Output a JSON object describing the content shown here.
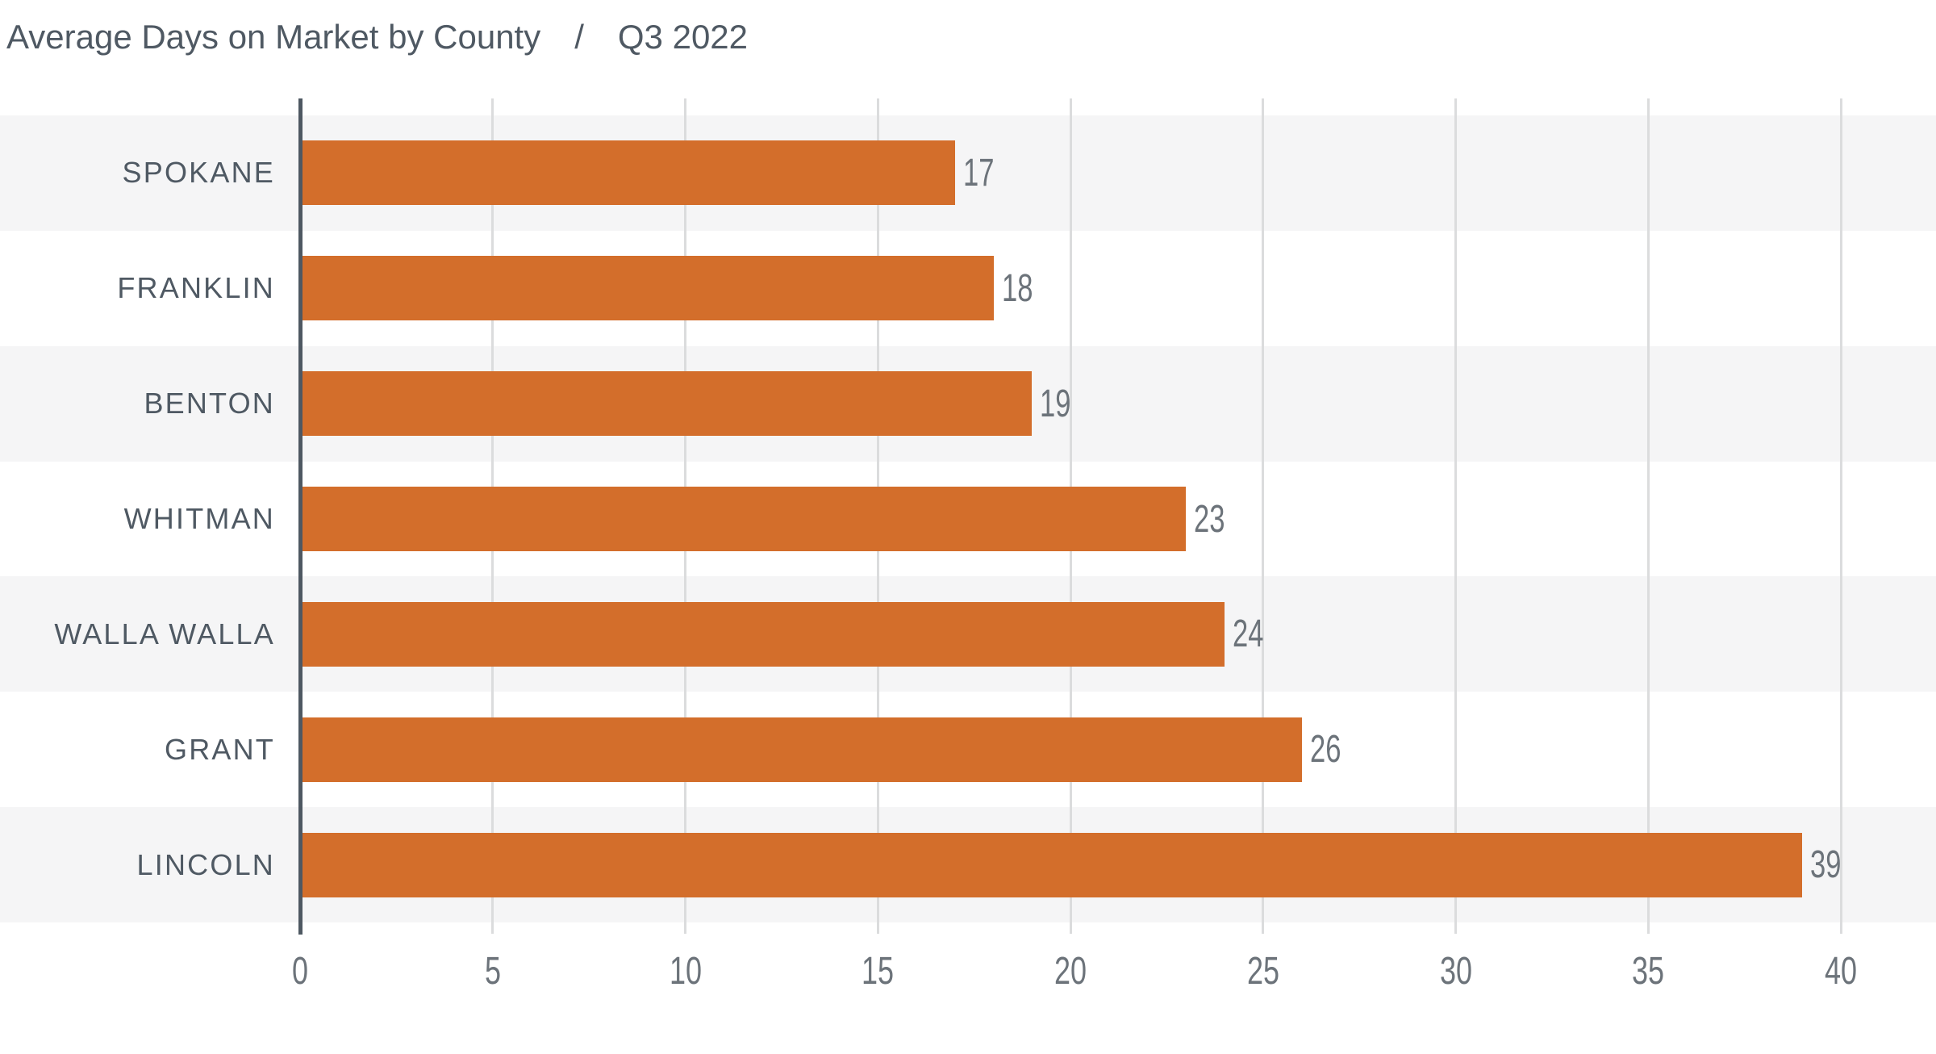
{
  "title": {
    "text": "Average Days on Market by County",
    "separator": "/",
    "period": "Q3 2022"
  },
  "chart_data": {
    "type": "bar",
    "orientation": "horizontal",
    "title": "Average Days on Market by County",
    "subtitle": "Q3 2022",
    "categories": [
      "SPOKANE",
      "FRANKLIN",
      "BENTON",
      "WHITMAN",
      "WALLA WALLA",
      "GRANT",
      "LINCOLN"
    ],
    "values": [
      17,
      18,
      19,
      23,
      24,
      26,
      39
    ],
    "value_labels": [
      "17",
      "18",
      "19",
      "23",
      "24",
      "26",
      "39"
    ],
    "x_ticks": [
      0,
      5,
      10,
      15,
      20,
      25,
      30,
      35,
      40
    ],
    "xlim": [
      0,
      42
    ],
    "grid": true,
    "legend": false,
    "colors": {
      "bar": "#D36E2B",
      "stripe": "#F5F5F6",
      "stripe_alt": "#FFFFFF",
      "grid": "#DBDCDD",
      "axis": "#4E5862",
      "title_text": "#4F5963",
      "category_text": "#4F5963",
      "number_text": "#6C737A"
    }
  }
}
